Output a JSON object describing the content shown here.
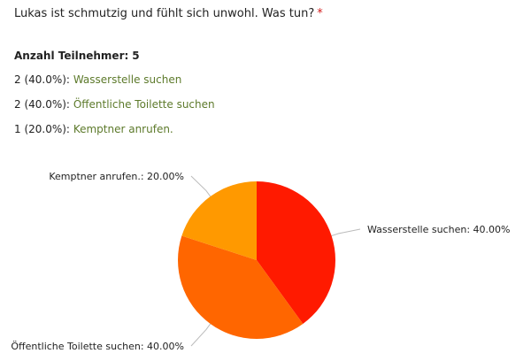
{
  "question": {
    "text": "Lukas ist schmutzig und fühlt sich unwohl. Was tun?",
    "required_marker": "*"
  },
  "participants": {
    "label": "Anzahl Teilnehmer:",
    "value": "5"
  },
  "answers": [
    {
      "count": "2 (40.0%):",
      "label": "Wasserstelle suchen"
    },
    {
      "count": "2 (40.0%):",
      "label": "Öffentliche Toilette suchen"
    },
    {
      "count": "1 (20.0%):",
      "label": "Kemptner anrufen."
    }
  ],
  "chart_data": {
    "type": "pie",
    "categories": [
      "Wasserstelle suchen",
      "Öffentliche Toilette suchen",
      "Kemptner anrufen."
    ],
    "values": [
      40.0,
      40.0,
      20.0
    ],
    "slice_labels": [
      "Wasserstelle suchen: 40.00%",
      "Öffentliche Toilette suchen: 40.00%",
      "Kemptner anrufen.: 20.00%"
    ],
    "colors": [
      "#ff1a00",
      "#ff6600",
      "#ff9900"
    ]
  },
  "colors": {
    "answer_text": "#5d7a2b",
    "required": "#d21c1c",
    "leader_line": "#bbbbbb"
  }
}
